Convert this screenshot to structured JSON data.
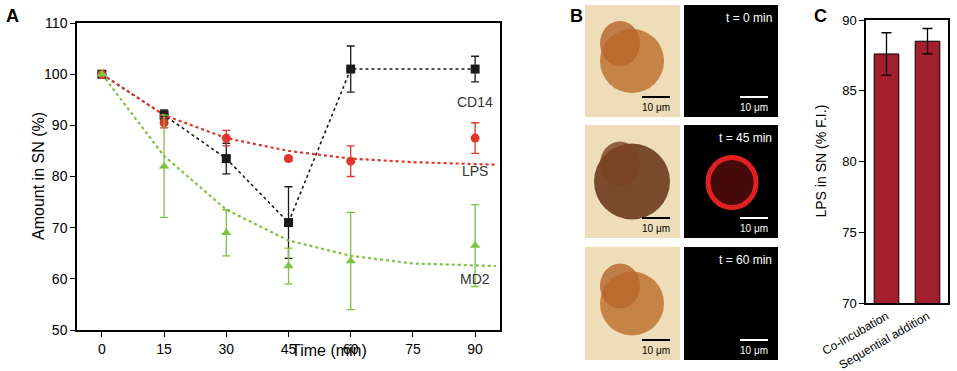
{
  "chart_data": [
    {
      "panel_label": "A",
      "type": "scatter",
      "x_label": "Time (min)",
      "y_label": "Amount in SN (%)",
      "xlim": [
        -6,
        96
      ],
      "xticks": [
        0,
        15,
        30,
        45,
        60,
        75,
        90
      ],
      "ylim": [
        50,
        110
      ],
      "yticks": [
        50,
        60,
        70,
        80,
        90,
        100,
        110
      ],
      "grid": false,
      "series": [
        {
          "name": "CD14",
          "color": "#1a1a1a",
          "marker": "square",
          "line_style": "dotted",
          "x": [
            0,
            15,
            30,
            45,
            60,
            90
          ],
          "values": [
            100,
            92,
            83.5,
            71,
            101,
            101
          ],
          "error": [
            0,
            1,
            3,
            7,
            4.5,
            2.5
          ]
        },
        {
          "name": "LPS",
          "color": "#e0342c",
          "marker": "circle",
          "x": [
            0,
            15,
            30,
            45,
            60,
            90
          ],
          "values": [
            100,
            90.5,
            87.5,
            83.5,
            83,
            87.5
          ],
          "error": [
            0,
            1,
            1.5,
            0.5,
            3,
            3
          ],
          "fit": {
            "line_style": "dotted",
            "x": [
              0,
              15,
              30,
              45,
              60,
              75,
              95
            ],
            "values": [
              100,
              92,
              87.5,
              85,
              83.5,
              82.8,
              82.3
            ]
          }
        },
        {
          "name": "MD2",
          "color": "#7dc242",
          "marker": "triangle",
          "x": [
            0,
            15,
            30,
            45,
            60,
            90
          ],
          "values": [
            100,
            82,
            69,
            62.5,
            63.5,
            66.5
          ],
          "error": [
            0,
            10,
            4.5,
            3.5,
            9.5,
            8
          ],
          "fit": {
            "line_style": "dotted",
            "x": [
              0,
              15,
              30,
              45,
              60,
              75,
              95
            ],
            "values": [
              100,
              84,
              73.5,
              67.5,
              64.5,
              63,
              62.5
            ]
          }
        }
      ]
    },
    {
      "panel_label": "C",
      "type": "bar",
      "y_label": "LPS in SN (% F.I.)",
      "categories": [
        "Co-incubation",
        "Sequential addition"
      ],
      "values": [
        87.6,
        88.5
      ],
      "error": [
        1.5,
        0.9
      ],
      "color": "#a31f2e",
      "ylim": [
        70,
        90
      ],
      "yticks": [
        70,
        75,
        80,
        85,
        90
      ],
      "grid": false
    }
  ],
  "panel_b": {
    "panel_label": "B",
    "rows": [
      {
        "time": "t = 0 min",
        "scale_bar": "10 μm",
        "signal": false
      },
      {
        "time": "t = 45 min",
        "scale_bar": "10 μm",
        "signal": true
      },
      {
        "time": "t = 60 min",
        "scale_bar": "10 μm",
        "signal": false
      }
    ]
  }
}
